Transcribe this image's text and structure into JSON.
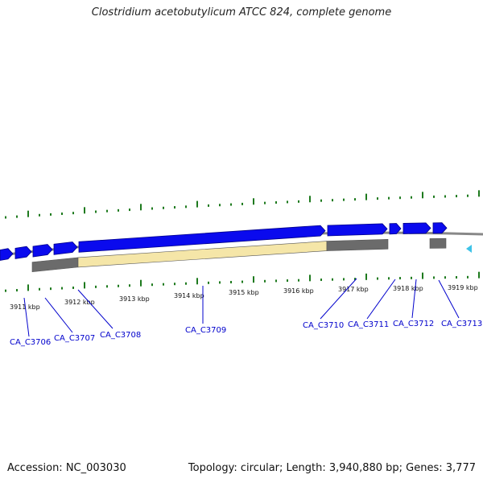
{
  "title": "Clostridium acetobutylicum ATCC 824, complete genome",
  "footer": {
    "accession": "Accession: NC_003030",
    "stats": "Topology: circular; Length: 3,940,880 bp; Genes: 3,777"
  },
  "colors": {
    "gene_forward": "#0a0aee",
    "gene_forward_stroke": "#00008a",
    "cds_grey": "#6b6b6b",
    "cds_highlight": "#f5e6a8",
    "tick_green": "#1e7a1e",
    "label_blue": "#0000cc",
    "arrow_cyan": "#3ec3e8",
    "backbone": "#888888"
  },
  "kbp_labels": [
    "3911 kbp",
    "3912 kbp",
    "3913 kbp",
    "3914 kbp",
    "3915 kbp",
    "3916 kbp",
    "3917 kbp",
    "3918 kbp",
    "3919 kbp"
  ],
  "genes": [
    "CA_C3706",
    "CA_C3707",
    "CA_C3708",
    "CA_C3709",
    "CA_C3710",
    "CA_C3711",
    "CA_C3712",
    "CA_C3713"
  ]
}
